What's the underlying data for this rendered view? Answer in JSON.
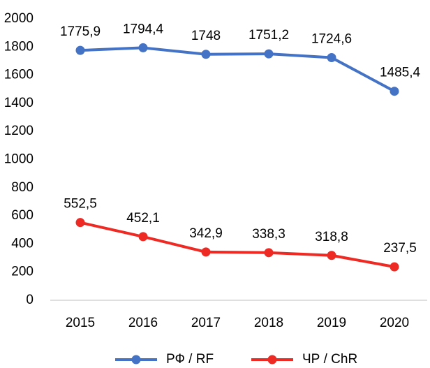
{
  "chart_data": {
    "type": "line",
    "categories": [
      "2015",
      "2016",
      "2017",
      "2018",
      "2019",
      "2020"
    ],
    "series": [
      {
        "name": "РФ / RF",
        "color": "#4472c4",
        "values": [
          1775.9,
          1794.4,
          1748,
          1751.2,
          1724.6,
          1485.4
        ],
        "value_labels": [
          "1775,9",
          "1794,4",
          "1748",
          "1751,2",
          "1724,6",
          "1485,4"
        ]
      },
      {
        "name": "ЧР / ChR",
        "color": "#ee2a24",
        "values": [
          552.5,
          452.1,
          342.9,
          338.3,
          318.8,
          237.5
        ],
        "value_labels": [
          "552,5",
          "452,1",
          "342,9",
          "338,3",
          "318,8",
          "237,5"
        ]
      }
    ],
    "ylim": [
      0,
      2000
    ],
    "yticks": [
      0,
      200,
      400,
      600,
      800,
      1000,
      1200,
      1400,
      1600,
      1800,
      2000
    ],
    "grid": false,
    "legend": "bottom"
  }
}
